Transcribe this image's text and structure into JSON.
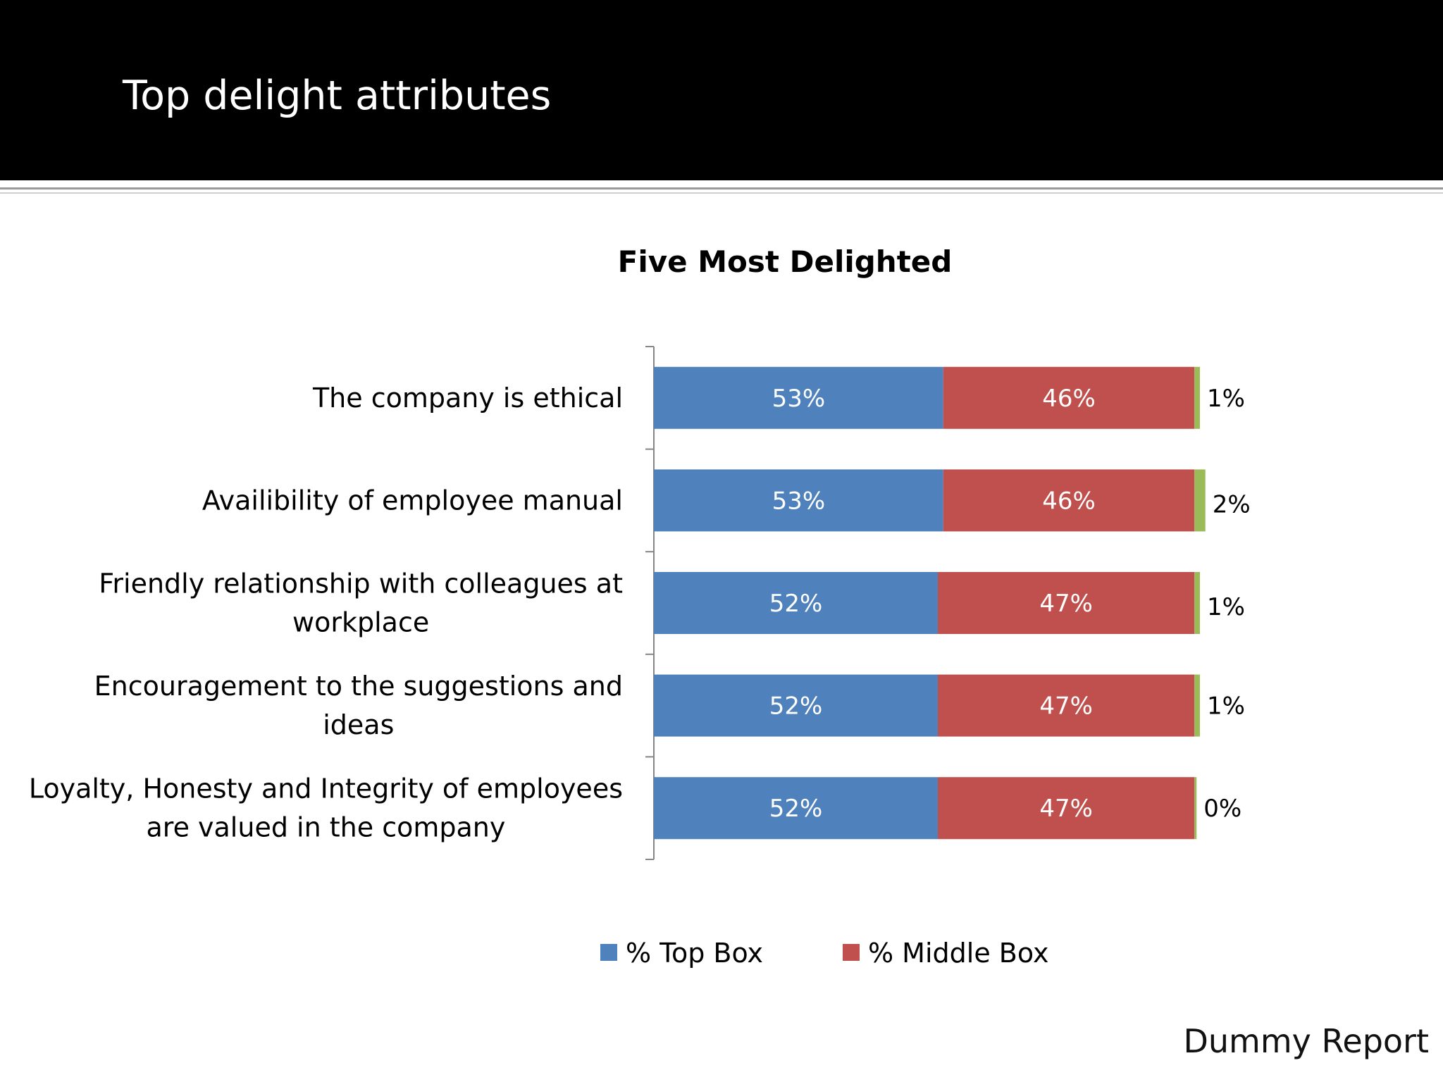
{
  "slide": {
    "title": "Top delight attributes",
    "footer": "Dummy Report"
  },
  "colors": {
    "top_box": "#4F81BD",
    "middle_box": "#C0504D",
    "bottom_box": "#9BBB59",
    "header_bg": "#000000",
    "axis": "#868686"
  },
  "chart_data": {
    "type": "bar",
    "orientation": "horizontal",
    "stacked": "percent",
    "title": "Five Most Delighted",
    "categories": [
      "The company is ethical",
      "Availibility of employee manual",
      "Friendly relationship with colleagues at workplace",
      "Encouragement to the suggestions and ideas",
      "Loyalty, Honesty and Integrity of employees are valued in the company"
    ],
    "category_lines": [
      [
        "The company is ethical"
      ],
      [
        "Availibility of employee manual"
      ],
      [
        "Friendly relationship with colleagues at",
        "workplace"
      ],
      [
        "Encouragement to the suggestions and",
        "ideas"
      ],
      [
        "Loyalty, Honesty and Integrity of employees",
        "are valued in the company"
      ]
    ],
    "series": [
      {
        "name": "% Top Box",
        "values": [
          53,
          53,
          52,
          52,
          52
        ],
        "labels": [
          "53%",
          "53%",
          "52%",
          "52%",
          "52%"
        ]
      },
      {
        "name": "% Middle Box",
        "values": [
          46,
          46,
          47,
          47,
          47
        ],
        "labels": [
          "46%",
          "46%",
          "47%",
          "47%",
          "47%"
        ]
      },
      {
        "values": [
          1,
          2,
          1,
          1,
          0
        ],
        "labels": [
          "1%",
          "2%",
          "1%",
          "1%",
          "0%"
        ]
      }
    ],
    "xlim": [
      0,
      100
    ],
    "grid": false,
    "legend_position": "bottom"
  }
}
